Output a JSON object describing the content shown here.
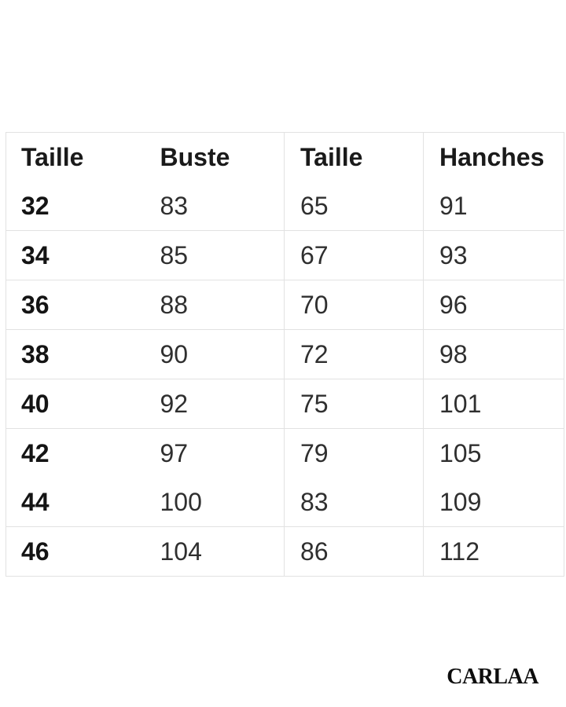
{
  "size_chart": {
    "columns": [
      {
        "key": "size",
        "label": "Taille"
      },
      {
        "key": "bust",
        "label": "Buste"
      },
      {
        "key": "waist",
        "label": "Taille"
      },
      {
        "key": "hips",
        "label": "Hanches"
      }
    ],
    "rows": [
      {
        "size": "32",
        "bust": "83",
        "waist": "65",
        "hips": "91"
      },
      {
        "size": "34",
        "bust": "85",
        "waist": "67",
        "hips": "93"
      },
      {
        "size": "36",
        "bust": "88",
        "waist": "70",
        "hips": "96"
      },
      {
        "size": "38",
        "bust": "90",
        "waist": "72",
        "hips": "98"
      },
      {
        "size": "40",
        "bust": "92",
        "waist": "75",
        "hips": "101"
      },
      {
        "size": "42",
        "bust": "97",
        "waist": "79",
        "hips": "105"
      },
      {
        "size": "44",
        "bust": "100",
        "waist": "83",
        "hips": "109"
      },
      {
        "size": "46",
        "bust": "104",
        "waist": "86",
        "hips": "112"
      }
    ]
  },
  "brand": {
    "name": "CARLAA"
  },
  "colors": {
    "background": "#ffffff",
    "border": "#e2e2e2",
    "header_text": "#1a1a1a",
    "size_text": "#141414",
    "value_text": "#2f2f2f",
    "brand_text": "#0d0d0d"
  }
}
